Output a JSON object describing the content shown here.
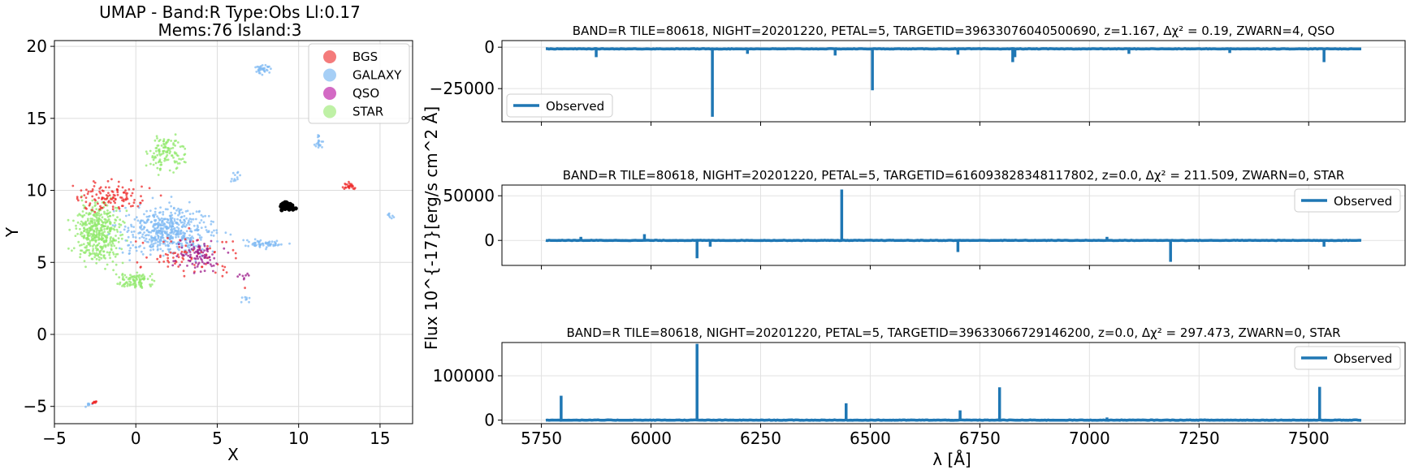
{
  "figure": {
    "ylabel_shared": "Flux 10^{-17}[erg/s cm^2 Å]"
  },
  "chart_data": [
    {
      "type": "scatter",
      "title": "UMAP  -  Band:R Type:Obs Ll:0.17",
      "subtitle": "Mems:76 Island:3",
      "xlabel": "X",
      "ylabel": "Y",
      "xlim": [
        -5,
        17
      ],
      "ylim": [
        -6.2,
        20.4
      ],
      "xticks": [
        -5,
        0,
        5,
        10,
        15
      ],
      "yticks": [
        -5,
        0,
        5,
        10,
        15,
        20
      ],
      "grid": true,
      "legend": "top-right",
      "colors": {
        "BGS": "#f47b7b",
        "GALAXY": "#a6cff6",
        "QSO": "#d36ac4",
        "STAR": "#bff1a6",
        "highlight": "#000000"
      },
      "series": [
        {
          "name": "BGS",
          "color": "#ee2a2a",
          "clusters": [
            {
              "center": [
                -1.5,
                9.6
              ],
              "spread": [
                2.3,
                1.0
              ],
              "weight": 120
            },
            {
              "center": [
                13.1,
                10.3
              ],
              "spread": [
                0.4,
                0.25
              ],
              "weight": 25
            },
            {
              "center": [
                -2.6,
                -4.7
              ],
              "spread": [
                0.2,
                0.1
              ],
              "weight": 10
            },
            {
              "center": [
                3.2,
                5.5
              ],
              "spread": [
                3.0,
                1.5
              ],
              "weight": 80
            }
          ]
        },
        {
          "name": "GALAXY",
          "color": "#7fbaf3",
          "clusters": [
            {
              "center": [
                2.0,
                7.2
              ],
              "spread": [
                2.7,
                1.6
              ],
              "weight": 520
            },
            {
              "center": [
                7.8,
                6.3
              ],
              "spread": [
                1.2,
                0.3
              ],
              "weight": 60
            },
            {
              "center": [
                7.8,
                18.4
              ],
              "spread": [
                0.6,
                0.35
              ],
              "weight": 35
            },
            {
              "center": [
                11.3,
                13.4
              ],
              "spread": [
                0.3,
                0.5
              ],
              "weight": 20
            },
            {
              "center": [
                6.1,
                11.0
              ],
              "spread": [
                0.3,
                0.4
              ],
              "weight": 12
            },
            {
              "center": [
                6.7,
                2.5
              ],
              "spread": [
                0.3,
                0.3
              ],
              "weight": 8
            },
            {
              "center": [
                15.6,
                8.2
              ],
              "spread": [
                0.3,
                0.3
              ],
              "weight": 8
            },
            {
              "center": [
                -2.9,
                -4.9
              ],
              "spread": [
                0.2,
                0.2
              ],
              "weight": 8
            }
          ]
        },
        {
          "name": "QSO",
          "color": "#9c1a8a",
          "clusters": [
            {
              "center": [
                3.8,
                5.4
              ],
              "spread": [
                1.3,
                1.0
              ],
              "weight": 90
            },
            {
              "center": [
                6.6,
                4.1
              ],
              "spread": [
                0.3,
                0.3
              ],
              "weight": 8
            }
          ]
        },
        {
          "name": "STAR",
          "color": "#8fe86a",
          "clusters": [
            {
              "center": [
                -2.3,
                7.0
              ],
              "spread": [
                1.4,
                2.0
              ],
              "weight": 420
            },
            {
              "center": [
                1.9,
                12.6
              ],
              "spread": [
                1.0,
                1.3
              ],
              "weight": 120
            },
            {
              "center": [
                0.0,
                3.7
              ],
              "spread": [
                1.2,
                0.6
              ],
              "weight": 90
            }
          ]
        },
        {
          "name": "",
          "color": "#000000",
          "clusters": [
            {
              "center": [
                9.3,
                8.9
              ],
              "spread": [
                0.35,
                0.25
              ],
              "weight": 76
            }
          ]
        }
      ]
    },
    {
      "type": "line",
      "title": "BAND=R TILE=80618, NIGHT=20201220, PETAL=5, TARGETID=39633076040500690, z=1.167, Δχ² = 0.19, ZWARN=4, QSO",
      "x_range": [
        5760,
        7620
      ],
      "xlim": [
        5660,
        7720
      ],
      "ylim": [
        -45000,
        4000
      ],
      "yticks": [
        0,
        -25000
      ],
      "baseline": -1000,
      "spikes": [
        [
          6140,
          -42000
        ],
        [
          6505,
          -26000
        ],
        [
          5875,
          -6000
        ],
        [
          6220,
          -4000
        ],
        [
          6420,
          -5000
        ],
        [
          6700,
          -4500
        ],
        [
          6825,
          -9000
        ],
        [
          6830,
          -6000
        ],
        [
          7090,
          -4000
        ],
        [
          7320,
          -3500
        ],
        [
          7535,
          -9000
        ]
      ],
      "grid": true,
      "legend": "bottom-left",
      "series": [
        {
          "name": "Observed",
          "color": "#1f77b4"
        }
      ]
    },
    {
      "type": "line",
      "title": "BAND=R TILE=80618, NIGHT=20201220, PETAL=5, TARGETID=616093828348117802, z=0.0, Δχ² = 211.509, ZWARN=0, STAR",
      "x_range": [
        5760,
        7620
      ],
      "xlim": [
        5660,
        7720
      ],
      "ylim": [
        -28000,
        62000
      ],
      "yticks": [
        0,
        50000
      ],
      "baseline": 0,
      "spikes": [
        [
          6435,
          57000
        ],
        [
          6105,
          -20000
        ],
        [
          5840,
          4000
        ],
        [
          5985,
          7000
        ],
        [
          6135,
          -7000
        ],
        [
          6700,
          -13000
        ],
        [
          7185,
          -24000
        ],
        [
          7040,
          4000
        ],
        [
          7535,
          -7000
        ]
      ],
      "grid": true,
      "legend": "top-right",
      "series": [
        {
          "name": "Observed",
          "color": "#1f77b4"
        }
      ]
    },
    {
      "type": "line",
      "title": "BAND=R TILE=80618, NIGHT=20201220, PETAL=5, TARGETID=39633066729146200, z=0.0, Δχ² = 297.473, ZWARN=0, STAR",
      "x_range": [
        5760,
        7620
      ],
      "xlim": [
        5660,
        7720
      ],
      "xticks": [
        5750,
        6000,
        6250,
        6500,
        6750,
        7000,
        7250,
        7500
      ],
      "xlabel": "λ [Å]",
      "ylim": [
        -8000,
        175000
      ],
      "yticks": [
        0,
        100000
      ],
      "baseline": 0,
      "spikes": [
        [
          5795,
          55000
        ],
        [
          6105,
          172000
        ],
        [
          6445,
          38000
        ],
        [
          6705,
          22000
        ],
        [
          6795,
          74000
        ],
        [
          7525,
          75000
        ],
        [
          7040,
          6000
        ]
      ],
      "grid": true,
      "legend": "top-right",
      "series": [
        {
          "name": "Observed",
          "color": "#1f77b4"
        }
      ]
    }
  ]
}
